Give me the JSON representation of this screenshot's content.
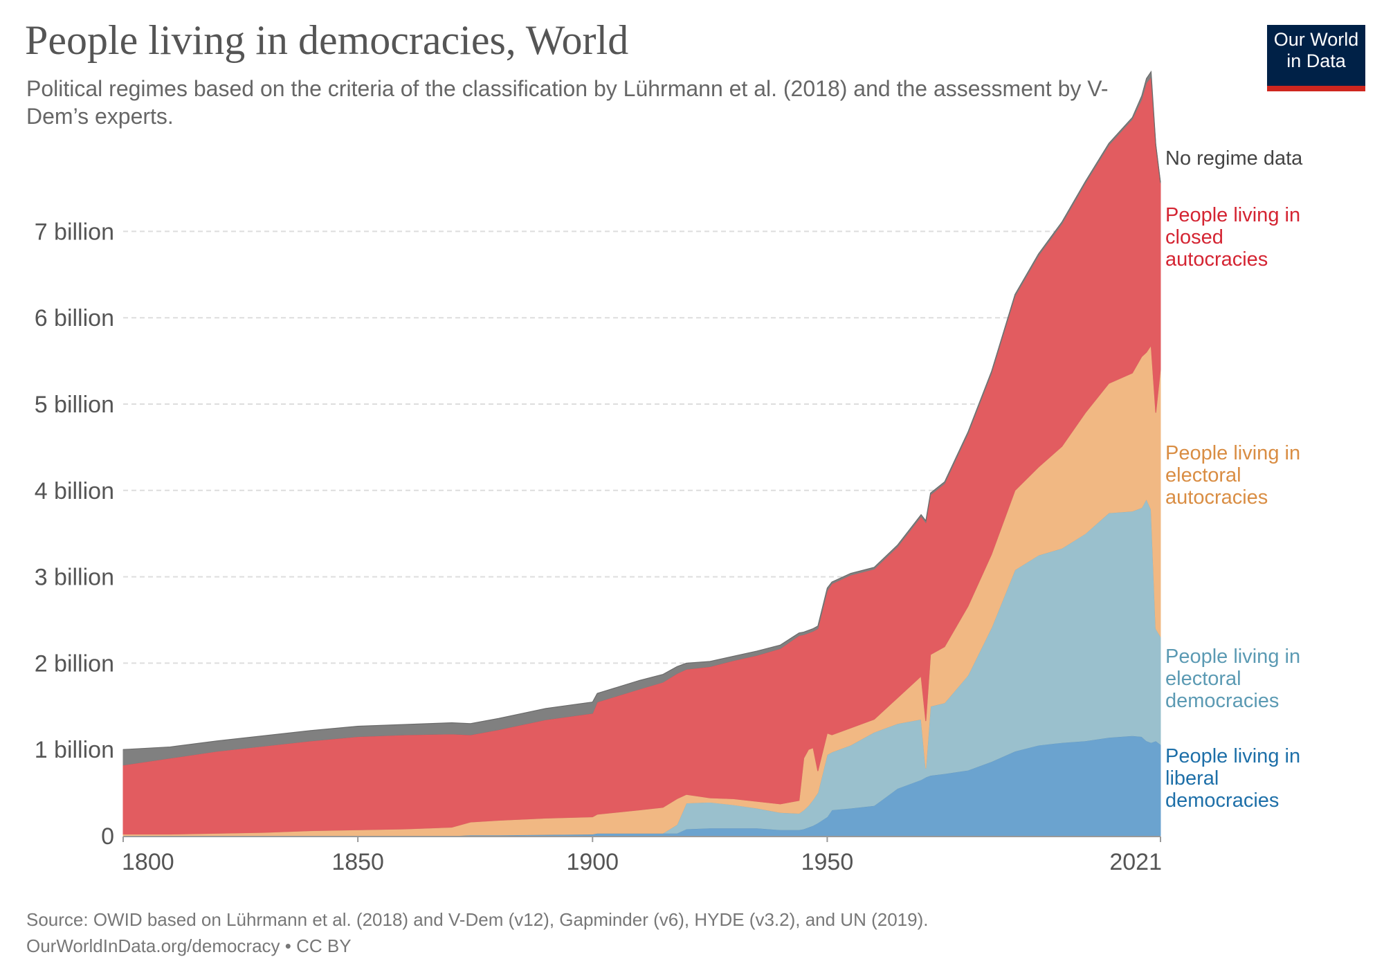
{
  "header": {
    "title": "People living in democracies, World",
    "subtitle": "Political regimes based on the criteria of the classification by Lührmann et al. (2018) and the assessment by V-Dem’s experts."
  },
  "logo": {
    "line1": "Our World",
    "line2": "in Data"
  },
  "footer": {
    "source": "Source: OWID based on Lührmann et al. (2018) and V-Dem (v12), Gapminder (v6), HYDE (v3.2), and UN (2019).",
    "license": "OurWorldInData.org/democracy • CC BY"
  },
  "chart_data": {
    "type": "area",
    "stacked": true,
    "title": "People living in democracies, World",
    "xlim": [
      1800,
      2021
    ],
    "ylim": [
      0,
      7000000000
    ],
    "grid": true,
    "legend_position": "right-of-plot",
    "x_ticks": [
      {
        "value": 1800,
        "label": "1800"
      },
      {
        "value": 1850,
        "label": "1850"
      },
      {
        "value": 1900,
        "label": "1900"
      },
      {
        "value": 1950,
        "label": "1950"
      },
      {
        "value": 2021,
        "label": "2021"
      }
    ],
    "y_ticks": [
      {
        "value": 0,
        "label": "0"
      },
      {
        "value": 1000000000,
        "label": "1 billion"
      },
      {
        "value": 2000000000,
        "label": "2 billion"
      },
      {
        "value": 3000000000,
        "label": "3 billion"
      },
      {
        "value": 4000000000,
        "label": "4 billion"
      },
      {
        "value": 5000000000,
        "label": "5 billion"
      },
      {
        "value": 6000000000,
        "label": "6 billion"
      },
      {
        "value": 7000000000,
        "label": "7 billion"
      }
    ],
    "x": [
      1800,
      1810,
      1820,
      1830,
      1840,
      1850,
      1860,
      1870,
      1874,
      1880,
      1890,
      1900,
      1901,
      1910,
      1915,
      1918,
      1920,
      1925,
      1930,
      1935,
      1940,
      1944,
      1945,
      1946,
      1947,
      1948,
      1950,
      1951,
      1955,
      1960,
      1965,
      1970,
      1971,
      1972,
      1975,
      1980,
      1985,
      1990,
      1995,
      2000,
      2005,
      2010,
      2015,
      2017,
      2018,
      2019,
      2020,
      2021
    ],
    "series": [
      {
        "name": "People living in\nliberal\ndemocracies",
        "color": "#6ba3cf",
        "values": [
          0,
          0,
          0,
          0,
          0,
          0,
          0,
          0,
          0.01,
          0.01,
          0.015,
          0.02,
          0.03,
          0.03,
          0.03,
          0.03,
          0.08,
          0.09,
          0.09,
          0.09,
          0.07,
          0.07,
          0.08,
          0.1,
          0.12,
          0.15,
          0.22,
          0.3,
          0.32,
          0.35,
          0.55,
          0.65,
          0.68,
          0.7,
          0.72,
          0.76,
          0.86,
          0.98,
          1.05,
          1.08,
          1.1,
          1.14,
          1.16,
          1.15,
          1.1,
          1.08,
          1.1,
          1.06
        ]
      },
      {
        "name": "People living in\nelectoral\ndemocracies",
        "color": "#9ac0cd",
        "values": [
          0,
          0,
          0,
          0,
          0,
          0,
          0,
          0,
          0,
          0,
          0,
          0,
          0,
          0,
          0,
          0.1,
          0.3,
          0.3,
          0.27,
          0.23,
          0.2,
          0.19,
          0.22,
          0.25,
          0.3,
          0.35,
          0.72,
          0.67,
          0.73,
          0.85,
          0.75,
          0.7,
          0.1,
          0.8,
          0.82,
          1.1,
          1.55,
          2.1,
          2.2,
          2.25,
          2.4,
          2.6,
          2.6,
          2.65,
          2.8,
          2.7,
          1.3,
          1.25
        ]
      },
      {
        "name": "People living in\nelectoral\nautocracies",
        "color": "#f1b883",
        "values": [
          0.02,
          0.02,
          0.03,
          0.04,
          0.06,
          0.07,
          0.08,
          0.1,
          0.15,
          0.17,
          0.19,
          0.2,
          0.22,
          0.27,
          0.3,
          0.3,
          0.1,
          0.05,
          0.07,
          0.08,
          0.1,
          0.15,
          0.6,
          0.65,
          0.6,
          0.25,
          0.25,
          0.2,
          0.2,
          0.15,
          0.3,
          0.5,
          0.55,
          0.6,
          0.65,
          0.8,
          0.85,
          0.92,
          1.02,
          1.18,
          1.4,
          1.5,
          1.6,
          1.75,
          1.7,
          1.9,
          2.5,
          3.1
        ]
      },
      {
        "name": "People living in\nclosed\nautocracies",
        "color": "#e25c60",
        "values": [
          0.8,
          0.88,
          0.95,
          1.0,
          1.04,
          1.08,
          1.09,
          1.08,
          1.01,
          1.05,
          1.14,
          1.2,
          1.3,
          1.4,
          1.45,
          1.45,
          1.45,
          1.52,
          1.6,
          1.69,
          1.8,
          1.91,
          1.43,
          1.35,
          1.35,
          1.65,
          1.65,
          1.75,
          1.77,
          1.74,
          1.75,
          1.85,
          2.3,
          1.85,
          1.89,
          2.0,
          2.1,
          2.25,
          2.45,
          2.58,
          2.66,
          2.76,
          2.94,
          2.98,
          3.12,
          3.11,
          3.1,
          2.15
        ]
      },
      {
        "name": "No regime data",
        "color": "#808080",
        "values": [
          0.18,
          0.13,
          0.12,
          0.12,
          0.12,
          0.12,
          0.12,
          0.13,
          0.13,
          0.13,
          0.13,
          0.13,
          0.1,
          0.1,
          0.09,
          0.08,
          0.07,
          0.06,
          0.05,
          0.05,
          0.04,
          0.03,
          0.03,
          0.03,
          0.03,
          0.03,
          0.03,
          0.02,
          0.02,
          0.02,
          0.02,
          0.02,
          0.02,
          0.02,
          0.02,
          0.02,
          0.02,
          0.02,
          0.02,
          0.02,
          0.02,
          0.02,
          0.02,
          0.04,
          0.05,
          0.06,
          0.01,
          0.01
        ]
      }
    ],
    "values_unit": "billion people",
    "legend_label_colors": [
      "#1d6fa8",
      "#5b9ab3",
      "#d98d43",
      "#d42432",
      "#444444"
    ]
  }
}
